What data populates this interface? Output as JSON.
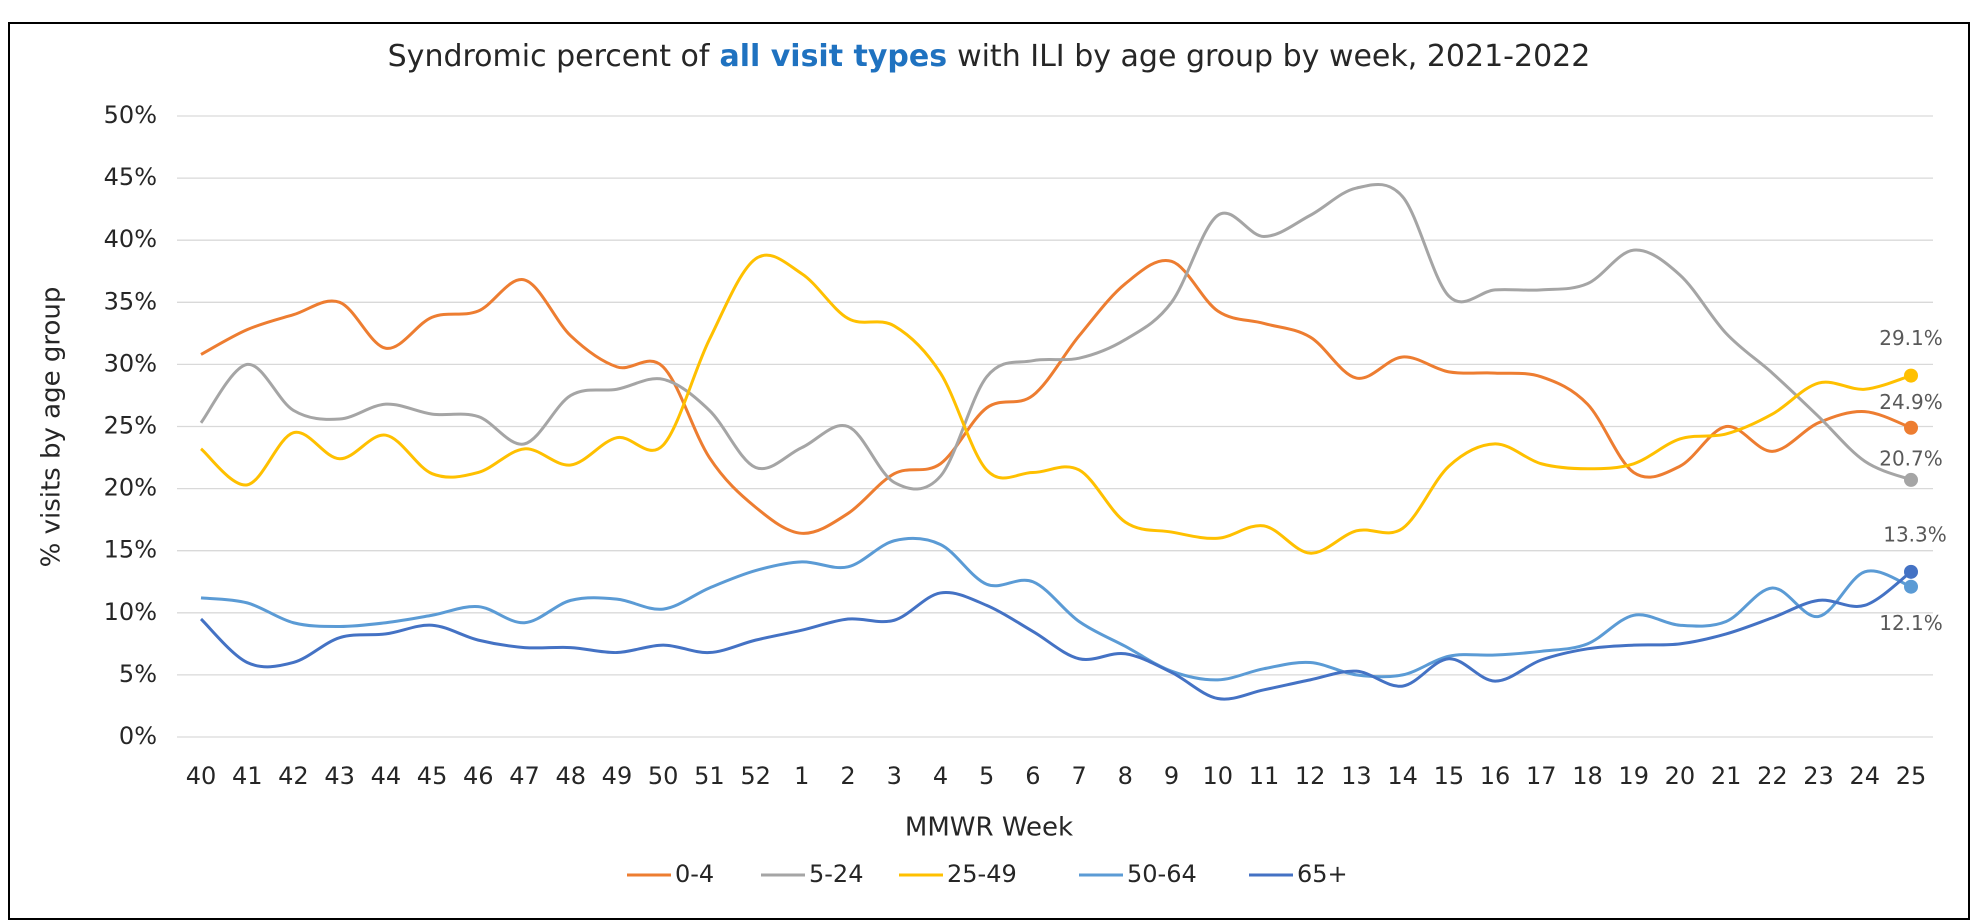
{
  "chart_data": {
    "type": "line",
    "title": [
      "Syndromic percent of",
      "all visit types",
      "with ILI by age group by week, 2021-2022"
    ],
    "x_label": "MMWR Week",
    "y_label": "% visits by age group",
    "categories": [
      "40",
      "41",
      "42",
      "43",
      "44",
      "45",
      "46",
      "47",
      "48",
      "49",
      "50",
      "51",
      "52",
      "1",
      "2",
      "3",
      "4",
      "5",
      "6",
      "7",
      "8",
      "9",
      "10",
      "11",
      "12",
      "13",
      "14",
      "15",
      "16",
      "17",
      "18",
      "19",
      "20",
      "21",
      "22",
      "23",
      "24",
      "25"
    ],
    "ylim": [
      0,
      50
    ],
    "yticks": [
      {
        "value": 0,
        "label": "0%"
      },
      {
        "value": 5,
        "label": "5%"
      },
      {
        "value": 10,
        "label": "10%"
      },
      {
        "value": 15,
        "label": "15%"
      },
      {
        "value": 20,
        "label": "20%"
      },
      {
        "value": 25,
        "label": "25%"
      },
      {
        "value": 30,
        "label": "30%"
      },
      {
        "value": 35,
        "label": "35%"
      },
      {
        "value": 40,
        "label": "40%"
      },
      {
        "value": 45,
        "label": "45%"
      },
      {
        "value": 50,
        "label": "50%"
      }
    ],
    "grid": true,
    "legend": "bottom",
    "series": [
      {
        "name": "0-4",
        "color": "#ed7d31",
        "values": [
          30.8,
          32.8,
          34,
          35,
          31.3,
          33.8,
          34.3,
          36.8,
          32.3,
          29.8,
          29.8,
          22.5,
          18.5,
          16.4,
          18,
          21.2,
          22,
          26.5,
          27.5,
          32.3,
          36.5,
          38.3,
          34.3,
          33.3,
          32.2,
          28.9,
          30.6,
          29.4,
          29.3,
          29,
          26.8,
          21.3,
          21.8,
          25,
          23,
          25.3,
          26.2,
          24.9
        ],
        "value_labels": [
          null,
          null,
          null,
          null,
          null,
          null,
          null,
          null,
          null,
          null,
          null,
          null,
          null,
          null,
          null,
          null,
          null,
          null,
          null,
          null,
          null,
          null,
          null,
          null,
          null,
          null,
          null,
          null,
          null,
          null,
          null,
          null,
          null,
          null,
          null,
          null,
          null,
          "24.9%"
        ]
      },
      {
        "name": "5-24",
        "color": "#a5a5a5",
        "values": [
          25.3,
          30,
          26.3,
          25.6,
          26.8,
          26,
          25.8,
          23.6,
          27.5,
          28,
          28.8,
          26.3,
          21.7,
          23.3,
          25,
          20.5,
          21,
          29,
          30.3,
          30.5,
          32,
          35,
          42,
          40.3,
          42,
          44.2,
          43.5,
          35.5,
          36,
          36,
          36.5,
          39.2,
          37.2,
          32.5,
          29.3,
          25.8,
          22.2,
          20.7
        ],
        "value_labels": [
          null,
          null,
          null,
          null,
          null,
          null,
          null,
          null,
          null,
          null,
          null,
          null,
          null,
          null,
          null,
          null,
          null,
          null,
          null,
          null,
          null,
          null,
          null,
          null,
          null,
          null,
          null,
          null,
          null,
          null,
          null,
          null,
          null,
          null,
          null,
          null,
          null,
          "20.7%"
        ]
      },
      {
        "name": "25-49",
        "color": "#ffc000",
        "values": [
          23.2,
          20.3,
          24.5,
          22.4,
          24.3,
          21.2,
          21.3,
          23.2,
          21.9,
          24.1,
          23.5,
          32,
          38.5,
          37.3,
          33.7,
          33.1,
          29.3,
          21.5,
          21.3,
          21.5,
          17.3,
          16.5,
          16,
          17,
          14.8,
          16.6,
          16.8,
          21.8,
          23.6,
          22,
          21.6,
          22,
          24,
          24.4,
          26,
          28.5,
          28,
          29.1
        ],
        "value_labels": [
          null,
          null,
          null,
          null,
          null,
          null,
          null,
          null,
          null,
          null,
          null,
          null,
          null,
          null,
          null,
          null,
          null,
          null,
          null,
          null,
          null,
          null,
          null,
          null,
          null,
          null,
          null,
          null,
          null,
          null,
          null,
          null,
          null,
          null,
          null,
          null,
          null,
          "29.1%"
        ]
      },
      {
        "name": "50-64",
        "color": "#5b9bd5",
        "values": [
          11.2,
          10.8,
          9.2,
          8.9,
          9.2,
          9.8,
          10.5,
          9.2,
          11,
          11.1,
          10.3,
          12,
          13.4,
          14.1,
          13.7,
          15.8,
          15.5,
          12.3,
          12.5,
          9.3,
          7.3,
          5.3,
          4.6,
          5.5,
          6,
          5,
          5,
          6.5,
          6.6,
          6.9,
          7.5,
          9.8,
          9,
          9.3,
          12,
          9.7,
          13.3,
          12.1
        ],
        "value_labels": [
          null,
          null,
          null,
          null,
          null,
          null,
          null,
          null,
          null,
          null,
          null,
          null,
          null,
          null,
          null,
          null,
          null,
          null,
          null,
          null,
          null,
          null,
          null,
          null,
          null,
          null,
          null,
          null,
          null,
          null,
          null,
          null,
          null,
          null,
          null,
          null,
          null,
          "12.1%"
        ]
      },
      {
        "name": "65+",
        "color": "#4472c4",
        "values": [
          9.5,
          6,
          6,
          8,
          8.3,
          9,
          7.8,
          7.2,
          7.2,
          6.8,
          7.4,
          6.8,
          7.8,
          8.6,
          9.5,
          9.4,
          11.6,
          10.6,
          8.5,
          6.3,
          6.7,
          5.2,
          3.1,
          3.8,
          4.6,
          5.3,
          4.1,
          6.3,
          4.5,
          6.2,
          7.1,
          7.4,
          7.5,
          8.3,
          9.6,
          11,
          10.6,
          13.3
        ],
        "value_labels": [
          null,
          null,
          null,
          null,
          null,
          null,
          null,
          null,
          null,
          null,
          null,
          null,
          null,
          null,
          null,
          null,
          null,
          null,
          null,
          null,
          null,
          null,
          null,
          null,
          null,
          null,
          null,
          null,
          null,
          null,
          null,
          null,
          null,
          null,
          null,
          null,
          null,
          "13.3%"
        ]
      }
    ]
  }
}
